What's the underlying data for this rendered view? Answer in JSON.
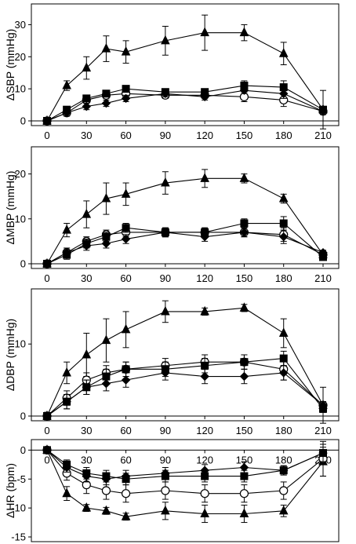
{
  "chart_data": [
    {
      "type": "line",
      "ylabel": "ΔSBP (mmHg)",
      "xlim": [
        0,
        210
      ],
      "ylim": [
        0,
        35
      ],
      "xticks": [
        0,
        30,
        60,
        90,
        120,
        150,
        180,
        210
      ],
      "yticks": [
        0,
        10,
        20,
        30
      ],
      "x": [
        0,
        15,
        30,
        45,
        60,
        90,
        120,
        150,
        180,
        210
      ],
      "series": [
        {
          "marker": "triangle",
          "values": [
            0,
            11,
            16.5,
            22.5,
            21.5,
            25,
            27.5,
            27.5,
            21,
            3.5
          ],
          "errors": [
            0.5,
            1.5,
            3.5,
            4,
            3.5,
            4.5,
            5.5,
            2.5,
            3.5,
            6
          ]
        },
        {
          "marker": "square",
          "values": [
            0,
            3.5,
            7,
            8.5,
            10,
            9,
            9,
            11,
            10.5,
            3.5
          ],
          "errors": [
            0.5,
            1,
            1,
            1,
            1,
            1,
            1,
            1.5,
            2,
            1
          ]
        },
        {
          "marker": "circle",
          "values": [
            0,
            2.5,
            6.5,
            8,
            8.5,
            8,
            8,
            7.5,
            6.5,
            3
          ],
          "errors": [
            0.5,
            1,
            1,
            1,
            1,
            1,
            1,
            1.5,
            2,
            1
          ]
        },
        {
          "marker": "diamond",
          "values": [
            0,
            2.5,
            4.5,
            5.5,
            7,
            8.5,
            7.5,
            9.5,
            8.5,
            3
          ],
          "errors": [
            0.5,
            1,
            1,
            1,
            1,
            1,
            1,
            1,
            1.5,
            1
          ]
        }
      ]
    },
    {
      "type": "line",
      "ylabel": "ΔMBP (mmHg)",
      "xlim": [
        0,
        210
      ],
      "ylim": [
        0,
        25
      ],
      "xticks": [
        0,
        30,
        60,
        90,
        120,
        150,
        180,
        210
      ],
      "yticks": [
        0,
        10,
        20
      ],
      "x": [
        0,
        15,
        30,
        45,
        60,
        90,
        120,
        150,
        180,
        210
      ],
      "series": [
        {
          "marker": "triangle",
          "values": [
            0,
            7.5,
            11,
            14.5,
            15.5,
            18,
            19,
            19,
            14.5,
            2
          ],
          "errors": [
            0.5,
            1.5,
            3,
            3.5,
            2.5,
            2.5,
            2,
            1,
            1,
            1
          ]
        },
        {
          "marker": "square",
          "values": [
            0,
            2,
            4.5,
            6,
            8,
            7,
            7,
            9,
            9,
            1.5
          ],
          "errors": [
            0.5,
            1,
            1,
            1,
            1,
            1,
            1,
            1,
            1.5,
            0.5
          ]
        },
        {
          "marker": "circle",
          "values": [
            0,
            2.5,
            5,
            6.5,
            7,
            7,
            7,
            7,
            6.5,
            2
          ],
          "errors": [
            0.5,
            1,
            1,
            1,
            1,
            1,
            1,
            1,
            1.5,
            0.5
          ]
        },
        {
          "marker": "diamond",
          "values": [
            0,
            2.5,
            4,
            4.5,
            5.5,
            7,
            6,
            7,
            6,
            2.5
          ],
          "errors": [
            0.5,
            1,
            1,
            1,
            1,
            1,
            1,
            1,
            1.5,
            0.5
          ]
        }
      ]
    },
    {
      "type": "line",
      "ylabel": "ΔDBP (mmHg)",
      "xlim": [
        0,
        210
      ],
      "ylim": [
        0,
        17
      ],
      "xticks": [
        0,
        30,
        60,
        90,
        120,
        150,
        180,
        210
      ],
      "yticks": [
        0,
        10
      ],
      "x": [
        0,
        15,
        30,
        45,
        60,
        90,
        120,
        150,
        180,
        210
      ],
      "series": [
        {
          "marker": "triangle",
          "values": [
            0,
            6,
            8.5,
            10.5,
            12,
            14.5,
            14.5,
            15,
            11.5,
            1.5
          ],
          "errors": [
            0.5,
            1.5,
            3,
            3,
            2.5,
            1.5,
            0.5,
            0.5,
            2,
            2.5
          ]
        },
        {
          "marker": "square",
          "values": [
            0,
            2,
            4,
            5.5,
            6.5,
            6.5,
            7,
            7.5,
            8,
            1
          ],
          "errors": [
            0.5,
            1,
            1,
            1,
            1,
            1,
            1,
            1,
            1,
            0.5
          ]
        },
        {
          "marker": "circle",
          "values": [
            0,
            2.5,
            5,
            6,
            6.5,
            7,
            7.5,
            7.5,
            6.5,
            1.5
          ],
          "errors": [
            0.5,
            1,
            1,
            1,
            1,
            1,
            1,
            1,
            1.5,
            0.5
          ]
        },
        {
          "marker": "diamond",
          "values": [
            0,
            2,
            4,
            4.5,
            5,
            6,
            5.5,
            5.5,
            6,
            1.5
          ],
          "errors": [
            0.5,
            1,
            1,
            1,
            1,
            1,
            1,
            1,
            1,
            0.5
          ]
        }
      ]
    },
    {
      "type": "line",
      "ylabel": "ΔHR (bpm)",
      "xlim": [
        0,
        210
      ],
      "ylim": [
        -15,
        1
      ],
      "xticks": [
        0,
        30,
        60,
        90,
        120,
        150,
        180,
        210
      ],
      "yticks": [
        0,
        -5,
        -10,
        -15
      ],
      "x": [
        0,
        15,
        30,
        45,
        60,
        90,
        120,
        150,
        180,
        210
      ],
      "series": [
        {
          "marker": "triangle",
          "values": [
            0,
            -7.5,
            -10,
            -10.5,
            -11.5,
            -10.5,
            -11,
            -11,
            -10.5,
            -2
          ],
          "errors": [
            0.3,
            1.2,
            0.6,
            0.6,
            0.6,
            1.5,
            1.5,
            1.5,
            1,
            2.5
          ]
        },
        {
          "marker": "circle",
          "values": [
            0,
            -4,
            -6,
            -7,
            -7.5,
            -7,
            -7.5,
            -7.5,
            -7,
            -1.5
          ],
          "errors": [
            0.3,
            1.2,
            1.5,
            1.5,
            1.5,
            1.5,
            1.5,
            1.5,
            1.5,
            3
          ]
        },
        {
          "marker": "square",
          "values": [
            0,
            -2.5,
            -4,
            -4.5,
            -5,
            -4.5,
            -4.5,
            -4.5,
            -3.5,
            -0.5
          ],
          "errors": [
            0.3,
            0.8,
            1,
            1,
            1,
            1,
            1,
            1,
            0.8,
            1.5
          ]
        },
        {
          "marker": "diamond",
          "values": [
            0,
            -3,
            -4.5,
            -5,
            -4.5,
            -4,
            -3.5,
            -3,
            -3.5,
            -0.5
          ],
          "errors": [
            0.3,
            0.8,
            1,
            1,
            1,
            1,
            1,
            1,
            0.8,
            1.5
          ]
        }
      ]
    }
  ]
}
